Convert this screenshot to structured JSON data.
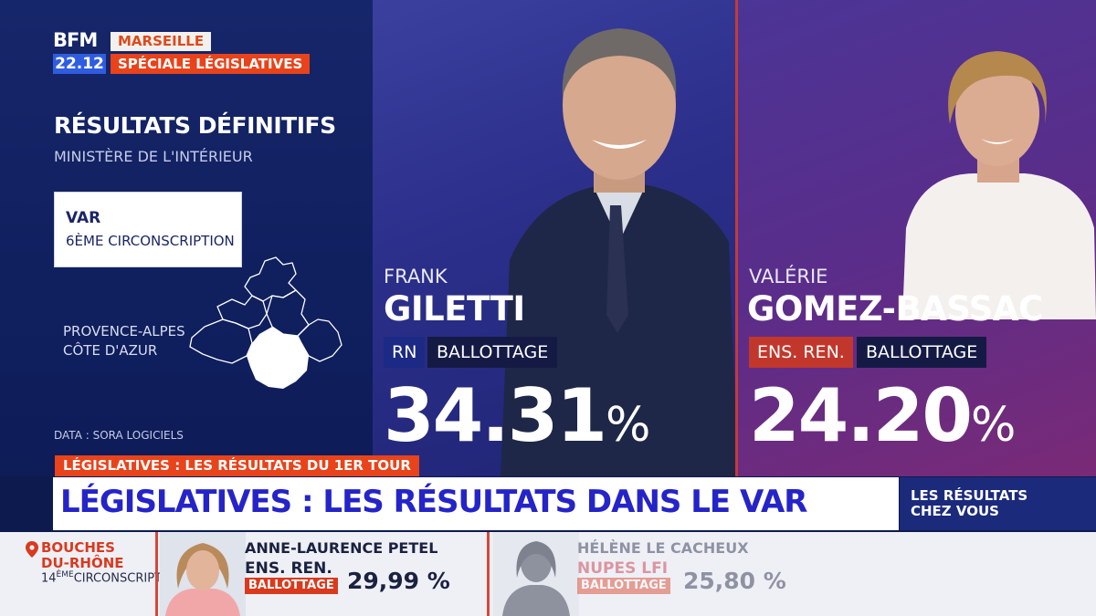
{
  "header": {
    "logo_text": "BFM",
    "time": "22.12",
    "city": "MARSEILLE",
    "special": "SPÉCIALE LÉGISLATIVES"
  },
  "results": {
    "title": "RÉSULTATS DÉFINITIFS",
    "source": "MINISTÈRE DE L'INTÉRIEUR",
    "department": "VAR",
    "circonscription": "6ÈME CIRCONSCRIPTION",
    "region_line1": "PROVENCE-ALPES",
    "region_line2": "CÔTE D'AZUR",
    "data_credit": "DATA : SORA LOGICIELS"
  },
  "candidates": [
    {
      "first_name": "FRANK",
      "last_name": "GILETTI",
      "party": "RN",
      "party_color": "#1c2a86",
      "status": "BALLOTTAGE",
      "percent": "34.31",
      "percent_sign": "%"
    },
    {
      "first_name": "VALÉRIE",
      "last_name": "GOMEZ-BASSAC",
      "party": "ENS. REN.",
      "party_color": "#c2372c",
      "status": "BALLOTTAGE",
      "percent": "24.20",
      "percent_sign": "%"
    }
  ],
  "banner": {
    "kicker": "LÉGISLATIVES : LES RÉSULTATS DU 1ER TOUR",
    "headline": "LÉGISLATIVES : LES RÉSULTATS DANS LE VAR",
    "side_line1": "LES RÉSULTATS",
    "side_line2": "CHEZ VOUS"
  },
  "ticker": {
    "dept_line1": "BOUCHES",
    "dept_line2": "DU-RHÔNE",
    "circ_number": "14",
    "circ_suffix": "ÈME",
    "circ_label": "CIRCONSCRIPTION",
    "candidates": [
      {
        "name": "ANNE-LAURENCE PETEL",
        "party": "ENS. REN.",
        "status": "BALLOTTAGE",
        "percent": "29,99 %"
      },
      {
        "name": "HÉLÈNE LE CACHEUX",
        "party": "NUPES LFI",
        "status": "BALLOTTAGE",
        "percent": "25,80 %"
      }
    ]
  },
  "colors": {
    "accent_orange": "#e8431b",
    "banner_blue": "#2424c8",
    "navy": "#10205f"
  }
}
